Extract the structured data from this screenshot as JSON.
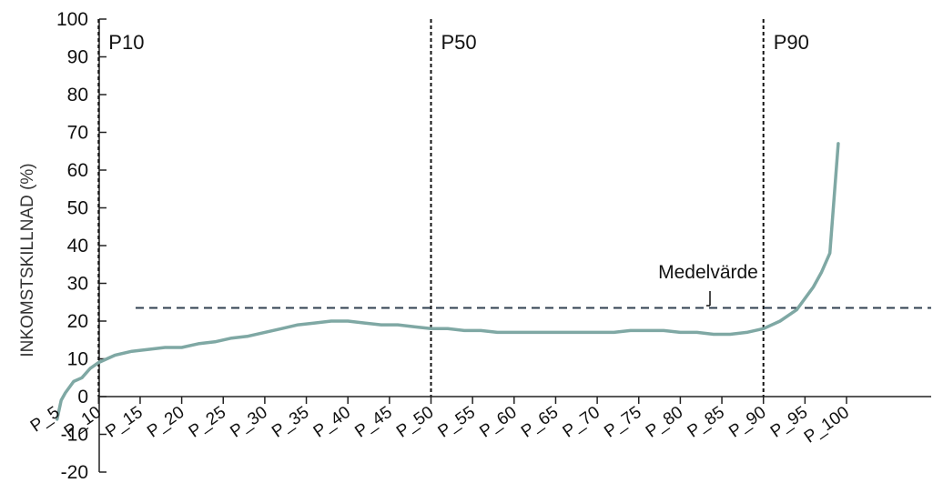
{
  "chart_data": {
    "type": "line",
    "ylabel": "INKOMSTSKILLNAD (%)",
    "ylim": [
      -20,
      100
    ],
    "yticks": [
      100,
      90,
      80,
      70,
      60,
      50,
      40,
      30,
      20,
      10,
      0,
      -10,
      -20
    ],
    "x_range": [
      5,
      100
    ],
    "xtick_labels": [
      "P_5",
      "P_10",
      "P_15",
      "P_20",
      "P_25",
      "P_30",
      "P_35",
      "P_40",
      "P_45",
      "P_50",
      "P_55",
      "P_60",
      "P_65",
      "P_70",
      "P_75",
      "P_80",
      "P_85",
      "P_90",
      "P_95",
      "P_100"
    ],
    "xtick_positions": [
      5,
      10,
      15,
      20,
      25,
      30,
      35,
      40,
      45,
      50,
      55,
      60,
      65,
      70,
      75,
      80,
      85,
      90,
      95,
      100
    ],
    "percentile_lines": [
      {
        "label": "P10",
        "x": 10
      },
      {
        "label": "P50",
        "x": 50
      },
      {
        "label": "P90",
        "x": 90
      }
    ],
    "mean": {
      "label": "Medelvärde",
      "value": 23.5
    },
    "series": [
      {
        "color": "#7fa8a4",
        "x": [
          5,
          5.5,
          6,
          7,
          8,
          9,
          10,
          11,
          12,
          14,
          16,
          18,
          20,
          22,
          24,
          26,
          28,
          30,
          32,
          34,
          36,
          38,
          40,
          42,
          44,
          46,
          48,
          50,
          52,
          54,
          56,
          58,
          60,
          62,
          64,
          66,
          68,
          70,
          72,
          74,
          76,
          78,
          80,
          82,
          84,
          86,
          88,
          90,
          92,
          94,
          96,
          97,
          98,
          99,
          100
        ],
        "y": [
          -6,
          -1,
          1,
          4,
          5,
          7.5,
          9,
          10,
          11,
          12,
          12.5,
          13,
          13,
          14,
          14.5,
          15.5,
          16,
          17,
          18,
          19,
          19.5,
          20,
          20,
          19.5,
          19,
          19,
          18.5,
          18,
          18,
          17.5,
          17.5,
          17,
          17,
          17,
          17,
          17,
          17,
          17,
          17,
          17.5,
          17.5,
          17.5,
          17,
          17,
          16.5,
          16.5,
          17,
          18,
          20,
          23,
          29,
          33,
          38,
          67,
          null
        ]
      }
    ]
  }
}
